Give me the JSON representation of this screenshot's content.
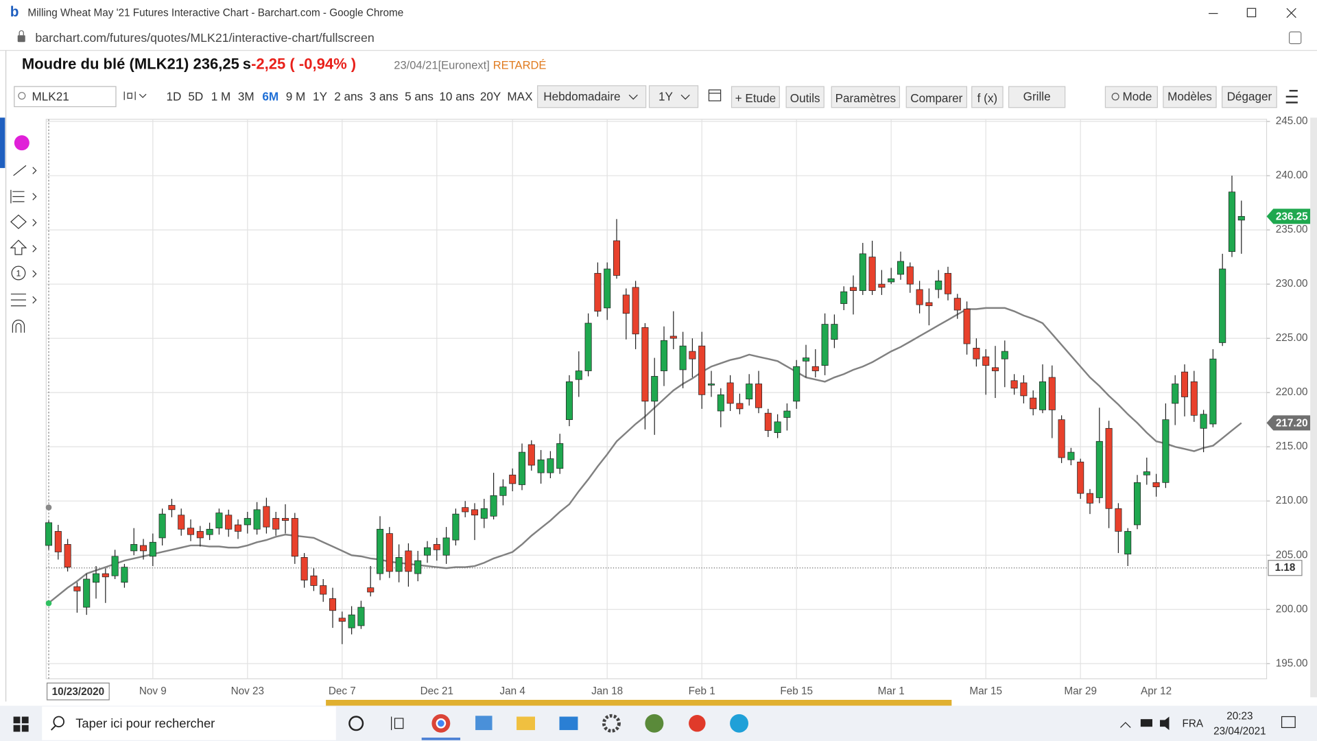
{
  "window": {
    "title": "Milling Wheat May '21 Futures Interactive Chart - Barchart.com - Google Chrome",
    "url": "barchart.com/futures/quotes/MLK21/interactive-chart/fullscreen"
  },
  "quote": {
    "name": "Moudre du blé (MLK21)",
    "price": "236,25",
    "price_flag": "s",
    "change": "-2,25 ( -0,94% )",
    "meta": "23/04/21[Euronext]",
    "status": "RETARDÉ"
  },
  "toolbar": {
    "symbol": "MLK21",
    "periods": [
      "1D",
      "5D",
      "1 M",
      "3M",
      "6M",
      "9 M",
      "1Y",
      "2 ans",
      "3 ans",
      "5 ans",
      "10 ans",
      "20Y",
      "MAX"
    ],
    "interval": "Hebdomadaire",
    "range": "1Y",
    "buttons": [
      "+ Etude",
      "Outils",
      "Paramètres",
      "Comparer",
      "f (x)",
      "Grille"
    ],
    "right_buttons": [
      "Mode",
      "Modèles",
      "Dégager"
    ]
  },
  "chart_data": {
    "type": "candlestick",
    "categories": [
      "10/23/2020",
      null,
      null,
      null,
      null,
      null,
      null,
      null,
      null,
      null,
      null,
      "Nov 9",
      null,
      null,
      null,
      null,
      null,
      null,
      null,
      null,
      null,
      "Nov 23",
      null,
      null,
      null,
      null,
      null,
      null,
      null,
      null,
      null,
      "Dec 7",
      null,
      null,
      null,
      null,
      null,
      null,
      null,
      null,
      null,
      "Dec 21",
      null,
      null,
      null,
      null,
      null,
      null,
      null,
      "Jan 4",
      null,
      null,
      null,
      null,
      null,
      null,
      null,
      null,
      null,
      "Jan 18",
      null,
      null,
      null,
      null,
      null,
      null,
      null,
      null,
      null,
      "Feb 1",
      null,
      null,
      null,
      null,
      null,
      null,
      null,
      null,
      null,
      "Feb 15",
      null,
      null,
      null,
      null,
      null,
      null,
      null,
      null,
      null,
      "Mar 1",
      null,
      null,
      null,
      null,
      null,
      null,
      null,
      null,
      null,
      "Mar 15",
      null,
      null,
      null,
      null,
      null,
      null,
      null,
      null,
      null,
      "Mar 29",
      null,
      null,
      null,
      null,
      null,
      null,
      null,
      "Apr 12",
      null,
      null,
      null,
      null,
      null,
      null,
      null,
      null,
      null
    ],
    "open": [
      205.9,
      207.2,
      206.0,
      202.1,
      200.2,
      202.5,
      203.3,
      203.1,
      202.5,
      205.4,
      205.9,
      204.9,
      206.6,
      209.6,
      208.7,
      207.5,
      207.2,
      206.9,
      207.5,
      208.7,
      207.8,
      207.8,
      207.4,
      209.5,
      208.4,
      208.4,
      208.4,
      204.8,
      203.1,
      202.2,
      201.0,
      199.2,
      198.3,
      198.5,
      202.0,
      203.3,
      207.0,
      203.5,
      205.4,
      203.3,
      205.0,
      206.0,
      205.0,
      206.4,
      209.4,
      209.2,
      208.4,
      208.6,
      210.5,
      212.4,
      211.5,
      215.2,
      212.6,
      212.6,
      213.0,
      217.5,
      221.2,
      222.0,
      231.0,
      227.8,
      234.0,
      229.0,
      229.7,
      226.0,
      219.2,
      222.0,
      225.2,
      222.1,
      223.8,
      224.3,
      220.7,
      218.3,
      220.9,
      219.0,
      219.4,
      220.8,
      218.1,
      216.3,
      217.7,
      219.2,
      222.9,
      222.4,
      222.5,
      224.9,
      228.2,
      229.7,
      229.4,
      232.5,
      230.0,
      230.2,
      230.9,
      231.6,
      229.5,
      228.3,
      229.5,
      231.0,
      228.7,
      227.7,
      224.1,
      223.3,
      222.3,
      223.1,
      221.1,
      220.9,
      219.5,
      218.4,
      221.4,
      217.5,
      213.8,
      213.6,
      210.7,
      210.3,
      216.7,
      209.3,
      205.1,
      207.8,
      212.4,
      211.7,
      211.7,
      219.0,
      221.9,
      221.0,
      216.7,
      217.1,
      224.6,
      233.0,
      235.9
    ],
    "high": [
      208.2,
      207.8,
      206.5,
      202.5,
      203.3,
      204.0,
      203.8,
      205.5,
      204.2,
      207.5,
      206.5,
      207.0,
      209.3,
      210.2,
      209.3,
      208.3,
      207.7,
      208.0,
      209.3,
      209.2,
      208.3,
      209.0,
      209.9,
      210.3,
      209.0,
      209.7,
      208.9,
      205.2,
      203.8,
      202.8,
      202.0,
      199.8,
      200.3,
      200.8,
      204.0,
      208.6,
      207.6,
      206.0,
      206.1,
      205.4,
      206.3,
      206.6,
      207.6,
      209.3,
      210.0,
      209.8,
      210.2,
      212.6,
      212.0,
      213.0,
      215.3,
      215.6,
      214.7,
      214.6,
      216.2,
      221.6,
      223.8,
      227.3,
      232.0,
      232.0,
      236.0,
      229.6,
      230.3,
      226.4,
      223.2,
      226.1,
      227.5,
      225.6,
      225.0,
      225.6,
      222.0,
      220.4,
      221.6,
      219.9,
      221.7,
      222.0,
      218.5,
      218.0,
      219.0,
      223.0,
      224.4,
      224.0,
      227.3,
      227.2,
      229.8,
      230.8,
      233.8,
      234.0,
      231.3,
      231.5,
      233.0,
      232.0,
      230.3,
      229.6,
      231.3,
      231.6,
      229.1,
      228.4,
      225.0,
      224.0,
      224.3,
      224.8,
      221.7,
      221.6,
      220.2,
      222.6,
      222.5,
      217.9,
      214.9,
      213.9,
      211.1,
      218.6,
      217.4,
      209.8,
      207.5,
      212.4,
      214.0,
      212.5,
      219.0,
      221.6,
      222.6,
      222.0,
      218.4,
      224.0,
      232.8,
      240.0,
      237.7
    ],
    "low": [
      205.5,
      204.6,
      203.5,
      199.7,
      199.5,
      201.0,
      200.6,
      202.8,
      202.0,
      205.0,
      204.6,
      204.0,
      205.9,
      208.5,
      206.8,
      206.3,
      205.8,
      206.4,
      206.9,
      206.7,
      206.5,
      207.0,
      206.9,
      207.0,
      206.8,
      207.0,
      204.2,
      202.0,
      201.7,
      200.7,
      198.3,
      196.8,
      197.7,
      198.2,
      201.2,
      202.7,
      202.9,
      202.5,
      202.1,
      202.6,
      204.3,
      204.5,
      204.2,
      205.9,
      208.5,
      206.4,
      207.5,
      208.3,
      209.6,
      210.9,
      211.0,
      212.8,
      211.6,
      212.1,
      212.5,
      216.9,
      219.6,
      221.5,
      227.0,
      226.7,
      230.5,
      224.9,
      224.0,
      216.6,
      216.1,
      220.6,
      224.0,
      220.4,
      221.4,
      218.5,
      219.6,
      216.8,
      218.3,
      218.0,
      218.8,
      218.1,
      215.9,
      215.8,
      216.5,
      218.5,
      221.4,
      221.4,
      221.6,
      224.1,
      227.6,
      227.2,
      229.0,
      229.0,
      229.0,
      230.0,
      230.4,
      229.2,
      227.3,
      226.2,
      228.7,
      228.5,
      226.8,
      223.5,
      222.4,
      219.8,
      219.5,
      220.5,
      219.8,
      219.0,
      217.9,
      218.1,
      215.8,
      213.5,
      213.3,
      210.2,
      208.8,
      209.8,
      207.5,
      205.2,
      204.0,
      207.4,
      211.5,
      210.4,
      211.2,
      217.0,
      217.8,
      217.3,
      214.5,
      216.8,
      224.3,
      232.5,
      232.8
    ],
    "close": [
      208.0,
      205.3,
      203.9,
      201.7,
      202.8,
      203.3,
      203.0,
      204.9,
      203.9,
      206.0,
      205.4,
      206.2,
      208.8,
      209.2,
      207.4,
      206.9,
      206.6,
      207.4,
      208.9,
      207.4,
      207.2,
      208.4,
      209.2,
      207.6,
      207.4,
      208.2,
      204.9,
      202.7,
      202.2,
      201.4,
      199.9,
      198.9,
      199.5,
      200.2,
      201.6,
      207.4,
      203.5,
      204.8,
      203.5,
      204.5,
      205.7,
      205.5,
      206.6,
      208.8,
      209.0,
      208.7,
      209.3,
      210.5,
      211.3,
      211.6,
      214.5,
      213.3,
      213.8,
      213.9,
      215.3,
      221.0,
      222.0,
      226.4,
      227.5,
      231.4,
      230.8,
      227.3,
      225.4,
      219.2,
      221.5,
      224.8,
      225.0,
      224.3,
      223.1,
      219.8,
      220.8,
      219.8,
      219.0,
      218.5,
      220.8,
      218.6,
      216.5,
      217.3,
      218.3,
      222.4,
      223.2,
      222.0,
      226.3,
      226.3,
      229.3,
      229.4,
      232.8,
      229.4,
      229.7,
      230.5,
      232.1,
      230.0,
      228.1,
      228.0,
      230.3,
      229.1,
      227.6,
      224.5,
      223.1,
      222.5,
      222.0,
      223.8,
      220.4,
      219.7,
      218.5,
      221.0,
      218.4,
      214.0,
      214.5,
      210.7,
      209.8,
      215.5,
      209.3,
      207.2,
      207.2,
      211.7,
      212.7,
      211.3,
      217.5,
      220.8,
      219.6,
      217.9,
      218.0,
      223.1,
      231.4,
      238.5,
      236.25
    ],
    "up_color": "#1fa84f",
    "down_color": "#e8412c",
    "overlay": {
      "type": "line",
      "color": "#808080",
      "values": [
        200.6,
        201.3,
        202.0,
        202.6,
        203.3,
        203.6,
        203.9,
        204.2,
        204.5,
        204.7,
        204.9,
        205.1,
        205.3,
        205.5,
        205.7,
        205.9,
        205.9,
        205.8,
        205.8,
        205.7,
        205.7,
        205.9,
        206.2,
        206.4,
        206.7,
        206.9,
        206.8,
        206.7,
        206.6,
        206.2,
        205.8,
        205.4,
        205.0,
        204.9,
        204.7,
        204.6,
        204.4,
        204.3,
        204.2,
        204.1,
        204.0,
        203.9,
        203.8,
        203.9,
        203.9,
        204.0,
        204.3,
        204.7,
        205.0,
        205.3,
        206.0,
        206.8,
        207.5,
        208.2,
        209.0,
        209.7,
        210.9,
        212.0,
        213.2,
        214.3,
        215.5,
        216.3,
        217.1,
        217.8,
        218.6,
        219.4,
        220.2,
        220.8,
        221.3,
        221.9,
        222.4,
        222.7,
        223.0,
        223.2,
        223.5,
        223.3,
        223.1,
        222.9,
        222.4,
        221.9,
        221.4,
        221.2,
        221.0,
        221.4,
        221.7,
        222.1,
        222.4,
        222.8,
        223.3,
        223.8,
        224.2,
        224.7,
        225.2,
        225.7,
        226.2,
        226.7,
        227.2,
        227.7,
        227.7,
        227.8,
        227.8,
        227.8,
        227.5,
        227.1,
        226.8,
        226.4,
        225.4,
        224.4,
        223.4,
        222.4,
        221.4,
        220.6,
        219.7,
        218.9,
        218.0,
        217.2,
        216.3,
        215.5,
        215.3,
        215.0,
        214.8,
        214.6,
        214.9,
        215.1,
        215.8,
        216.5,
        217.2
      ]
    },
    "annotations": [
      {
        "value": 217.2,
        "label": "217.20"
      }
    ],
    "crosshair_label": "1.18",
    "ylim": [
      193.6,
      245.2
    ],
    "yticks": [
      {
        "value": 195,
        "label": "195.00"
      },
      {
        "value": 200,
        "label": "200.00"
      },
      {
        "value": 205,
        "label": "205.00"
      },
      {
        "value": 210,
        "label": "210.00"
      },
      {
        "value": 215,
        "label": "215.00"
      },
      {
        "value": 220,
        "label": "220.00"
      },
      {
        "value": 225,
        "label": "225.00"
      },
      {
        "value": 230,
        "label": "230.00"
      },
      {
        "value": 235,
        "label": "235.00"
      },
      {
        "value": 240,
        "label": "240.00"
      },
      {
        "value": 245,
        "label": "245.00"
      }
    ],
    "grid": true
  },
  "taskbar": {
    "search": "Taper ici pour rechercher",
    "language": "FRA",
    "time": "20:23",
    "date": "23/04/2021"
  }
}
